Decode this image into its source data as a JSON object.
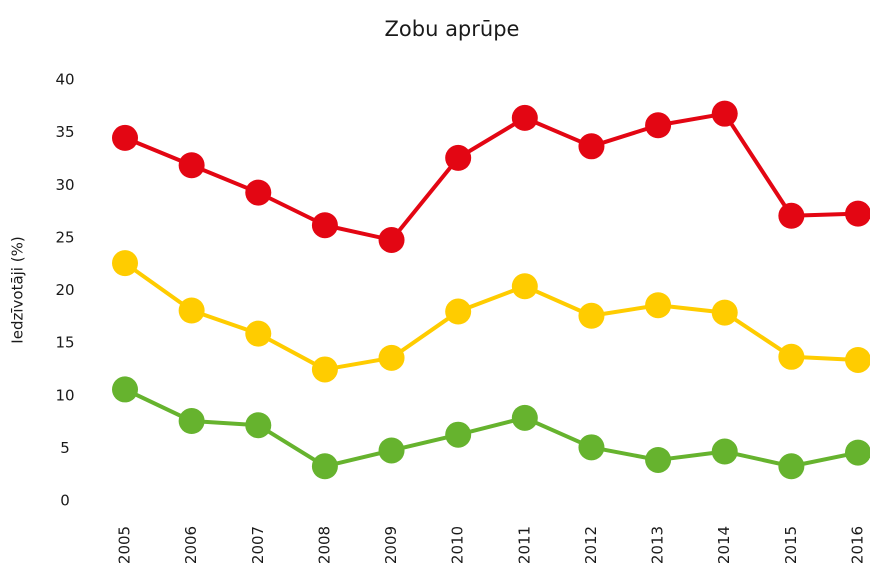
{
  "chart_data": {
    "type": "line",
    "title": "Zobu aprūpe",
    "y_label": "Iedzīvotāji (%)",
    "categories": [
      "2005",
      "2006",
      "2007",
      "2008",
      "2009",
      "2010",
      "2011",
      "2012",
      "2013",
      "2014",
      "2015",
      "2016"
    ],
    "series": [
      {
        "color": "#e30613",
        "values": [
          34.5,
          31.9,
          29.3,
          26.2,
          24.8,
          32.6,
          36.4,
          33.7,
          35.7,
          36.8,
          27.1,
          27.3
        ]
      },
      {
        "color": "#ffcc00",
        "values": [
          22.6,
          18.1,
          15.9,
          12.5,
          13.6,
          18.0,
          20.4,
          17.6,
          18.6,
          17.9,
          13.7,
          13.4
        ]
      },
      {
        "color": "#66b32e",
        "values": [
          10.6,
          7.6,
          7.2,
          3.3,
          4.8,
          6.3,
          7.9,
          5.1,
          3.9,
          4.7,
          3.3,
          4.6
        ]
      }
    ],
    "ylim": [
      0,
      40
    ],
    "yticks": [
      0,
      5,
      10,
      15,
      20,
      25,
      30,
      35,
      40
    ],
    "grid": false
  }
}
